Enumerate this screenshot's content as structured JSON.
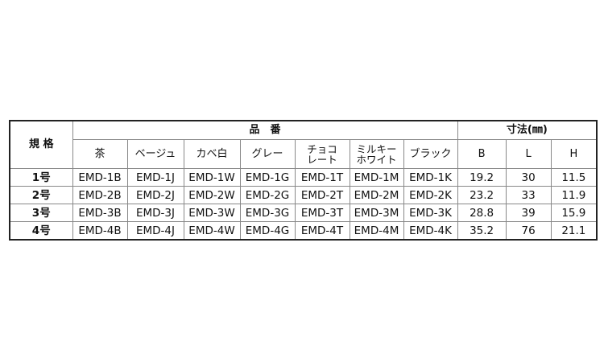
{
  "headers": {
    "spec": "規 格",
    "part_number": "品　番",
    "dimensions": "寸法(㎜)",
    "colors": [
      "茶",
      "ベージュ",
      "カベ白",
      "グレー",
      "チョコ",
      "レート",
      "ミルキー",
      "ホワイト",
      "ブラック"
    ],
    "dims": [
      "B",
      "L",
      "H"
    ]
  },
  "rows": [
    {
      "spec": "1号",
      "codes": [
        "EMD-1B",
        "EMD-1J",
        "EMD-1W",
        "EMD-1G",
        "EMD-1T",
        "EMD-1M",
        "EMD-1K"
      ],
      "dims": [
        "19.2",
        "30",
        "11.5"
      ]
    },
    {
      "spec": "2号",
      "codes": [
        "EMD-2B",
        "EMD-2J",
        "EMD-2W",
        "EMD-2G",
        "EMD-2T",
        "EMD-2M",
        "EMD-2K"
      ],
      "dims": [
        "23.2",
        "33",
        "11.9"
      ]
    },
    {
      "spec": "3号",
      "codes": [
        "EMD-3B",
        "EMD-3J",
        "EMD-3W",
        "EMD-3G",
        "EMD-3T",
        "EMD-3M",
        "EMD-3K"
      ],
      "dims": [
        "28.8",
        "39",
        "15.9"
      ]
    },
    {
      "spec": "4号",
      "codes": [
        "EMD-4B",
        "EMD-4J",
        "EMD-4W",
        "EMD-4G",
        "EMD-4T",
        "EMD-4M",
        "EMD-4K"
      ],
      "dims": [
        "35.2",
        "76",
        "21.1"
      ]
    }
  ]
}
